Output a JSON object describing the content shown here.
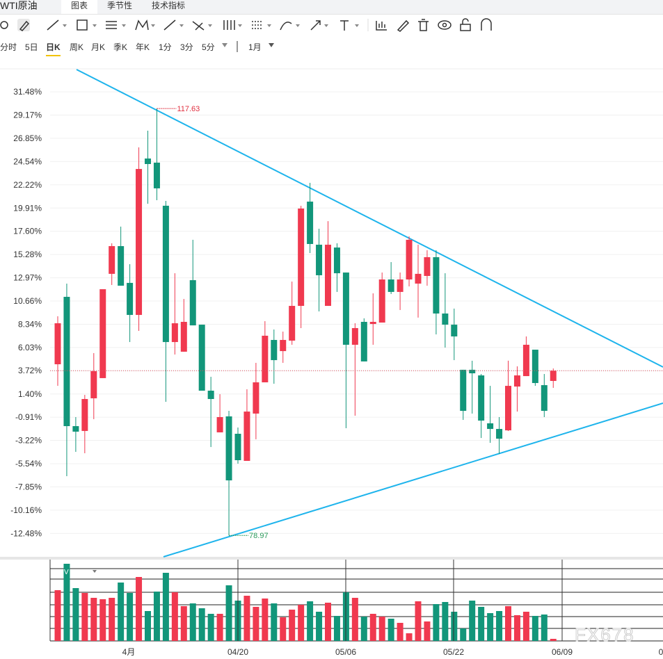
{
  "header": {
    "title": "WTI原油",
    "tabs": [
      "图表",
      "季节性",
      "技术指标"
    ]
  },
  "periods": [
    "分时",
    "5日",
    "日K",
    "周K",
    "月K",
    "季K",
    "年K",
    "1分",
    "3分",
    "5分"
  ],
  "active_period": "日K",
  "range_period": "1月",
  "chart_data": {
    "type": "candlestick",
    "ylim": [
      -14.74,
      33.7
    ],
    "yticks": [
      {
        "value": 31.48,
        "label": "31.48%"
      },
      {
        "value": 29.17,
        "label": "29.17%"
      },
      {
        "value": 26.85,
        "label": "26.85%"
      },
      {
        "value": 24.54,
        "label": "24.54%"
      },
      {
        "value": 22.22,
        "label": "22.22%"
      },
      {
        "value": 19.91,
        "label": "19.91%"
      },
      {
        "value": 17.6,
        "label": "17.60%"
      },
      {
        "value": 15.28,
        "label": "15.28%"
      },
      {
        "value": 12.97,
        "label": "12.97%"
      },
      {
        "value": 10.66,
        "label": "10.66%"
      },
      {
        "value": 8.34,
        "label": "8.34%"
      },
      {
        "value": 6.03,
        "label": "6.03%"
      },
      {
        "value": 3.72,
        "label": "3.72%"
      },
      {
        "value": 1.4,
        "label": "1.40%"
      },
      {
        "value": -0.91,
        "label": "-0.91%"
      },
      {
        "value": -3.22,
        "label": "-3.22%"
      },
      {
        "value": -5.54,
        "label": "-5.54%"
      },
      {
        "value": -7.85,
        "label": "-7.85%"
      },
      {
        "value": -10.16,
        "label": "-10.16%"
      },
      {
        "value": -12.48,
        "label": "-12.48%"
      }
    ],
    "grid": true,
    "up_color": "#f0394f",
    "down_color": "#12967a",
    "x_axis_labels": [
      "4月",
      "04/20",
      "05/06",
      "05/22",
      "06/09",
      "0"
    ],
    "annotations": [
      "117.63",
      "78.97"
    ],
    "candles": [
      {
        "open": 4.36,
        "high": 9.13,
        "low": 2.21,
        "close": 8.44
      },
      {
        "open": 11.07,
        "high": 12.39,
        "low": -6.78,
        "close": -1.8
      },
      {
        "open": -1.8,
        "high": -0.9,
        "low": -4.36,
        "close": -2.35
      },
      {
        "open": -2.28,
        "high": 1.31,
        "low": -4.5,
        "close": 0.9
      },
      {
        "open": 0.97,
        "high": 5.47,
        "low": -1.11,
        "close": 3.67
      },
      {
        "open": 2.98,
        "high": 11.83,
        "low": 2.98,
        "close": 11.83
      },
      {
        "open": 13.36,
        "high": 16.4,
        "low": 12.25,
        "close": 16.12
      },
      {
        "open": 16.12,
        "high": 18.06,
        "low": 12.18,
        "close": 12.18
      },
      {
        "open": 12.46,
        "high": 14.32,
        "low": 6.57,
        "close": 9.27
      },
      {
        "open": 9.27,
        "high": 25.95,
        "low": 7.68,
        "close": 23.8
      },
      {
        "open": 24.84,
        "high": 27.61,
        "low": 20.34,
        "close": 24.29
      },
      {
        "open": 24.43,
        "high": 29.82,
        "low": 20.69,
        "close": 21.87
      },
      {
        "open": 20.14,
        "high": 20.62,
        "low": 0.62,
        "close": 6.57
      },
      {
        "open": 6.57,
        "high": 13.42,
        "low": 5.33,
        "close": 8.44
      },
      {
        "open": 5.61,
        "high": 10.86,
        "low": 5.61,
        "close": 8.58
      },
      {
        "open": 12.73,
        "high": 16.75,
        "low": 8.23,
        "close": 8.23
      },
      {
        "open": 8.3,
        "high": 8.3,
        "low": 1.73,
        "close": 1.73
      },
      {
        "open": 1.73,
        "high": 3.11,
        "low": -3.88,
        "close": 0.9
      },
      {
        "open": -2.42,
        "high": 1.38,
        "low": -2.42,
        "close": -0.9
      },
      {
        "open": -0.83,
        "high": -0.28,
        "low": -12.68,
        "close": -7.2
      },
      {
        "open": -2.56,
        "high": -1.94,
        "low": -5.54,
        "close": -5.19
      },
      {
        "open": -5.26,
        "high": 1.87,
        "low": -5.26,
        "close": -0.35
      },
      {
        "open": -0.55,
        "high": 4.5,
        "low": -3.11,
        "close": 2.56
      },
      {
        "open": 2.56,
        "high": 8.65,
        "low": 2.56,
        "close": 7.2
      },
      {
        "open": 6.78,
        "high": 7.82,
        "low": 2.42,
        "close": 4.77
      },
      {
        "open": 5.67,
        "high": 7.61,
        "low": 4.5,
        "close": 6.78
      },
      {
        "open": 6.71,
        "high": 12.59,
        "low": 6.3,
        "close": 10.17
      },
      {
        "open": 10.17,
        "high": 20.14,
        "low": 7.96,
        "close": 19.86
      },
      {
        "open": 20.55,
        "high": 22.42,
        "low": 15.43,
        "close": 16.33
      },
      {
        "open": 16.26,
        "high": 17.85,
        "low": 9.62,
        "close": 13.22
      },
      {
        "open": 10.17,
        "high": 18.61,
        "low": 10.17,
        "close": 16.26
      },
      {
        "open": 15.98,
        "high": 16.4,
        "low": 11.56,
        "close": 13.42
      },
      {
        "open": 13.49,
        "high": 13.49,
        "low": -2.01,
        "close": 6.3
      },
      {
        "open": 6.3,
        "high": 8.44,
        "low": -0.76,
        "close": 7.96
      },
      {
        "open": 8.58,
        "high": 8.93,
        "low": 4.64,
        "close": 4.64
      },
      {
        "open": 8.37,
        "high": 11.42,
        "low": 6.3,
        "close": 8.58
      },
      {
        "open": 8.51,
        "high": 13.49,
        "low": 8.51,
        "close": 12.8
      },
      {
        "open": 12.8,
        "high": 14.53,
        "low": 11.35,
        "close": 11.56
      },
      {
        "open": 11.56,
        "high": 13.49,
        "low": 9.76,
        "close": 12.8
      },
      {
        "open": 12.8,
        "high": 17.09,
        "low": 12.11,
        "close": 16.75
      },
      {
        "open": 12.39,
        "high": 16.26,
        "low": 9.0,
        "close": 13.36
      },
      {
        "open": 13.15,
        "high": 15.71,
        "low": 12.18,
        "close": 15.02
      },
      {
        "open": 15.02,
        "high": 15.71,
        "low": 7.33,
        "close": 9.41
      },
      {
        "open": 9.41,
        "high": 13.42,
        "low": 6.02,
        "close": 8.3
      },
      {
        "open": 8.3,
        "high": 9.9,
        "low": 4.77,
        "close": 7.13
      },
      {
        "open": 3.81,
        "high": 3.81,
        "low": -1.18,
        "close": -0.28
      },
      {
        "open": 3.81,
        "high": 4.71,
        "low": -0.55,
        "close": 3.46
      },
      {
        "open": 3.25,
        "high": 3.39,
        "low": -2.98,
        "close": -1.25
      },
      {
        "open": -1.52,
        "high": 2.21,
        "low": -3.46,
        "close": -2.08
      },
      {
        "open": -2.08,
        "high": -0.9,
        "low": -4.57,
        "close": -3.05
      },
      {
        "open": -2.22,
        "high": 4.71,
        "low": -2.28,
        "close": 2.21
      },
      {
        "open": 2.14,
        "high": 4.15,
        "low": -0.35,
        "close": 3.25
      },
      {
        "open": 3.18,
        "high": 7.13,
        "low": 3.18,
        "close": 6.3
      },
      {
        "open": 5.81,
        "high": 5.81,
        "low": 2.21,
        "close": 2.49
      },
      {
        "open": 2.28,
        "high": 3.39,
        "low": -0.9,
        "close": -0.28
      },
      {
        "open": 2.7,
        "high": 3.94,
        "low": 2.01,
        "close": 3.72
      }
    ],
    "volume": {
      "label": "V",
      "values": [
        73,
        111,
        76,
        69,
        62,
        60,
        62,
        84,
        69,
        92,
        43,
        71,
        98,
        70,
        50,
        54,
        47,
        39,
        39,
        80,
        58,
        65,
        49,
        61,
        54,
        34,
        45,
        52,
        57,
        42,
        55,
        36,
        70,
        62,
        35,
        39,
        35,
        32,
        26,
        11,
        57,
        28,
        53,
        56,
        42,
        18,
        58,
        49,
        40,
        43,
        50,
        37,
        42,
        36,
        38,
        3
      ]
    },
    "watermark": "FX678"
  }
}
